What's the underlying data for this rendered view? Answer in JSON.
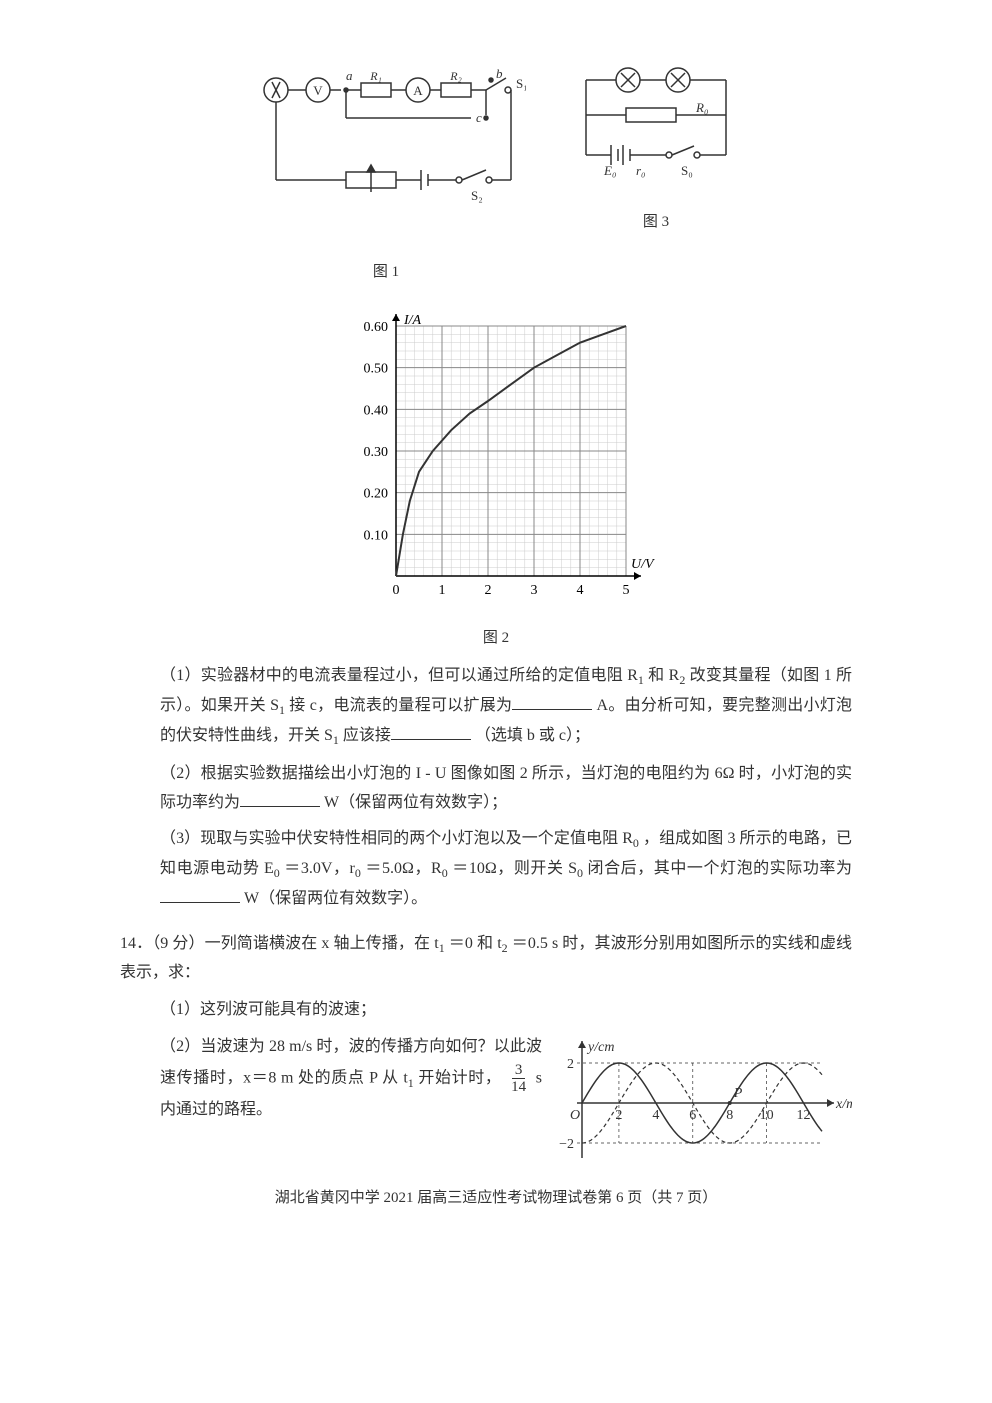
{
  "figures": {
    "circuit1": {
      "label": "图 1",
      "labels": {
        "V": "V",
        "A": "A",
        "a": "a",
        "b": "b",
        "c": "c",
        "R1": "R₁",
        "R2": "R₂",
        "S1": "S₁",
        "S2": "S₂"
      },
      "stroke": "#333333",
      "stroke_width": 1.5
    },
    "circuit3": {
      "label": "图 3",
      "labels": {
        "R0": "R₀",
        "E0": "E₀",
        "r0": "r₀",
        "S0": "S₀"
      },
      "stroke": "#333333",
      "stroke_width": 1.5
    },
    "chart": {
      "type": "line",
      "label": "图 2",
      "xlabel": "U/V",
      "ylabel": "I/A",
      "xlim": [
        0,
        5
      ],
      "ylim": [
        0,
        0.6
      ],
      "xtick_step": 1,
      "ytick_step": 0.1,
      "xticks": [
        "0",
        "1",
        "2",
        "3",
        "4",
        "5"
      ],
      "yticks": [
        "0.10",
        "0.20",
        "0.30",
        "0.40",
        "0.50",
        "0.60"
      ],
      "minor_ticks": 5,
      "grid_color": "#888888",
      "minor_grid_color": "#cccccc",
      "axis_color": "#000000",
      "curve_color": "#333333",
      "curve_width": 2,
      "curve_points_uv": [
        [
          0.0,
          0.0
        ],
        [
          0.15,
          0.1
        ],
        [
          0.3,
          0.18
        ],
        [
          0.5,
          0.25
        ],
        [
          0.8,
          0.3
        ],
        [
          1.2,
          0.35
        ],
        [
          1.6,
          0.39
        ],
        [
          2.0,
          0.42
        ],
        [
          2.5,
          0.46
        ],
        [
          3.0,
          0.5
        ],
        [
          3.5,
          0.53
        ],
        [
          4.0,
          0.56
        ],
        [
          4.5,
          0.58
        ],
        [
          5.0,
          0.6
        ]
      ],
      "background": "#ffffff",
      "label_fontsize": 14
    },
    "wave": {
      "type": "line",
      "xlabel": "x/m",
      "ylabel": "y/cm",
      "xlim": [
        0,
        13
      ],
      "ylim": [
        -2.5,
        2.5
      ],
      "xticks": [
        2,
        4,
        6,
        8,
        10,
        12
      ],
      "yticks": [
        -2,
        2
      ],
      "amplitude": 2,
      "wavelength": 8,
      "solid_phase": 0,
      "dashed_phase_shift": 2,
      "solid_color": "#333333",
      "dashed_color": "#333333",
      "solid_width": 1.5,
      "dashed_width": 1.2,
      "dash_pattern": "4,3",
      "axis_color": "#333333",
      "P_label": "P",
      "P_x": 8,
      "label_fontsize": 14,
      "background": "#ffffff",
      "O_label": "O"
    }
  },
  "text": {
    "q1_part1a": "（1）实验器材中的电流表量程过小，但可以通过所给的定值电阻 R",
    "q1_part1b": "和 R",
    "q1_part1c": "改变其量程（如图 1 所示）。如果开关 S",
    "q1_part1d": "接 c，电流表的量程可以扩展为",
    "q1_unit1": "A。由分析可知，要完整测出小灯泡的伏安特性曲线，开关 S",
    "q1_part1e": "应该接",
    "q1_part1f": "（选填 b 或 c）；",
    "q2_a": "（2）根据实验数据描绘出小灯泡的 I - U 图像如图 2 所示，当灯泡的电阻约为 6Ω 时，小灯泡的实际功率约为",
    "q2_b": "W（保留两位有效数字）；",
    "q3_a": "（3）现取与实验中伏安特性相同的两个小灯泡以及一个定值电阻 R",
    "q3_b": "，组成如图 3 所示的电路，已知电源电动势 E",
    "q3_c": "＝3.0V，r",
    "q3_d": "＝5.0Ω，R",
    "q3_e": "＝10Ω，则开关 S",
    "q3_f": "闭合后，其中一个灯泡的实际功率为",
    "q3_g": "W（保留两位有效数字）。",
    "q14_head": "14．（9 分）一列简谐横波在 x 轴上传播，在 t",
    "q14_head2": "＝0 和 t",
    "q14_head3": "＝0.5 s 时，其波形分别用如图所示的实线和虚线表示，求：",
    "q14_1": "（1）这列波可能具有的波速；",
    "q14_2a": "（2）当波速为 28 m/s 时，波的传播方向如何？以此波速传播时，x＝8 m 处的质点 P 从 t",
    "q14_2b": " 开始计时，",
    "q14_2c": " s 内通过的路程。",
    "frac_num": "3",
    "frac_den": "14",
    "footer": "湖北省黄冈中学 2021 届高三适应性考试物理试卷第 6 页（共 7 页）",
    "sub_0": "0",
    "sub_1": "1",
    "sub_2": "2"
  }
}
